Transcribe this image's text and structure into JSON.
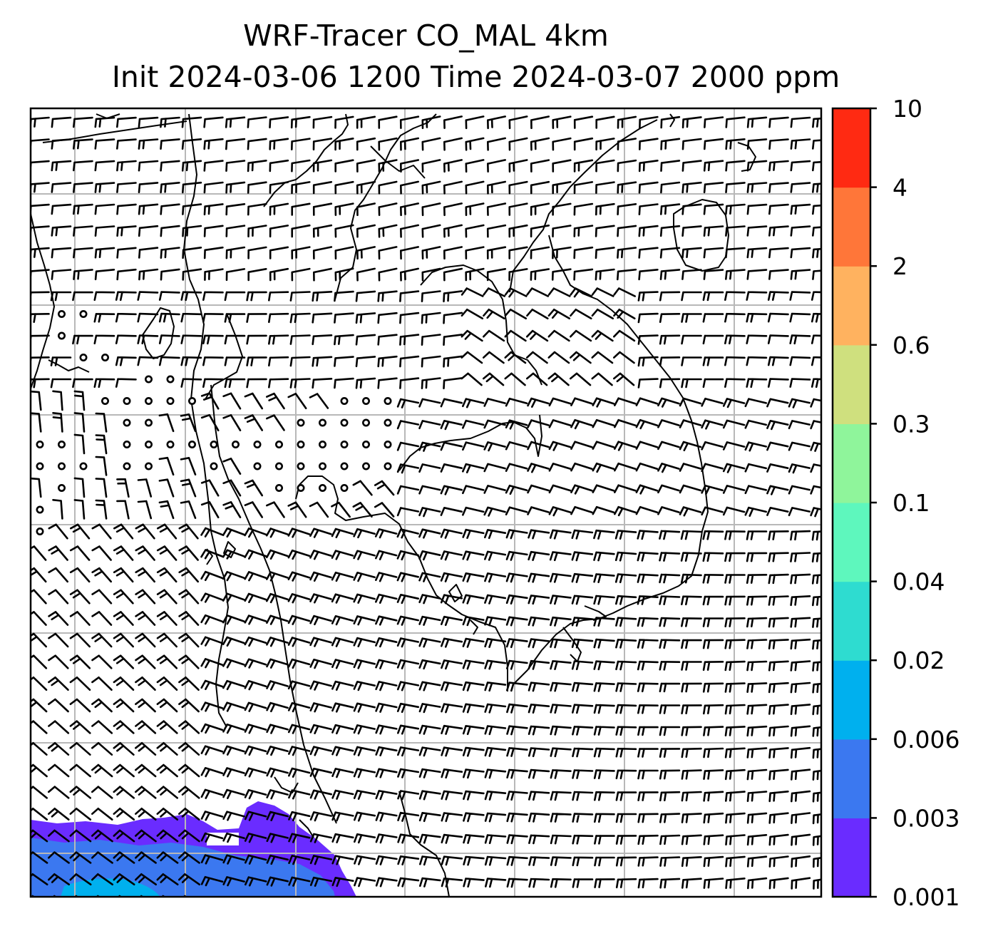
{
  "title": {
    "line1": "WRF-Tracer CO_MAL 4km",
    "line2": "Init 2024-03-06 1200 Time 2024-03-07 2000 ppm"
  },
  "colorbar": {
    "levels": [
      "0.001",
      "0.003",
      "0.006",
      "0.02",
      "0.04",
      "0.1",
      "0.3",
      "0.6",
      "2",
      "4",
      "10"
    ],
    "colors": [
      "#6a2cff",
      "#3b78f0",
      "#00b0ee",
      "#2edcd0",
      "#5ef7bd",
      "#8ff59b",
      "#cfe07e",
      "#ffb25f",
      "#ff7639",
      "#ff2a12"
    ]
  },
  "map": {
    "plume_colors": {
      "outer": "#6a2cff",
      "mid": "#3b78f0",
      "inner": "#00b0ee"
    },
    "gridline_color": "#b8b8b8",
    "overlays": [
      "wind-barbs",
      "calm-circles",
      "coastlines",
      "gridlines"
    ]
  }
}
